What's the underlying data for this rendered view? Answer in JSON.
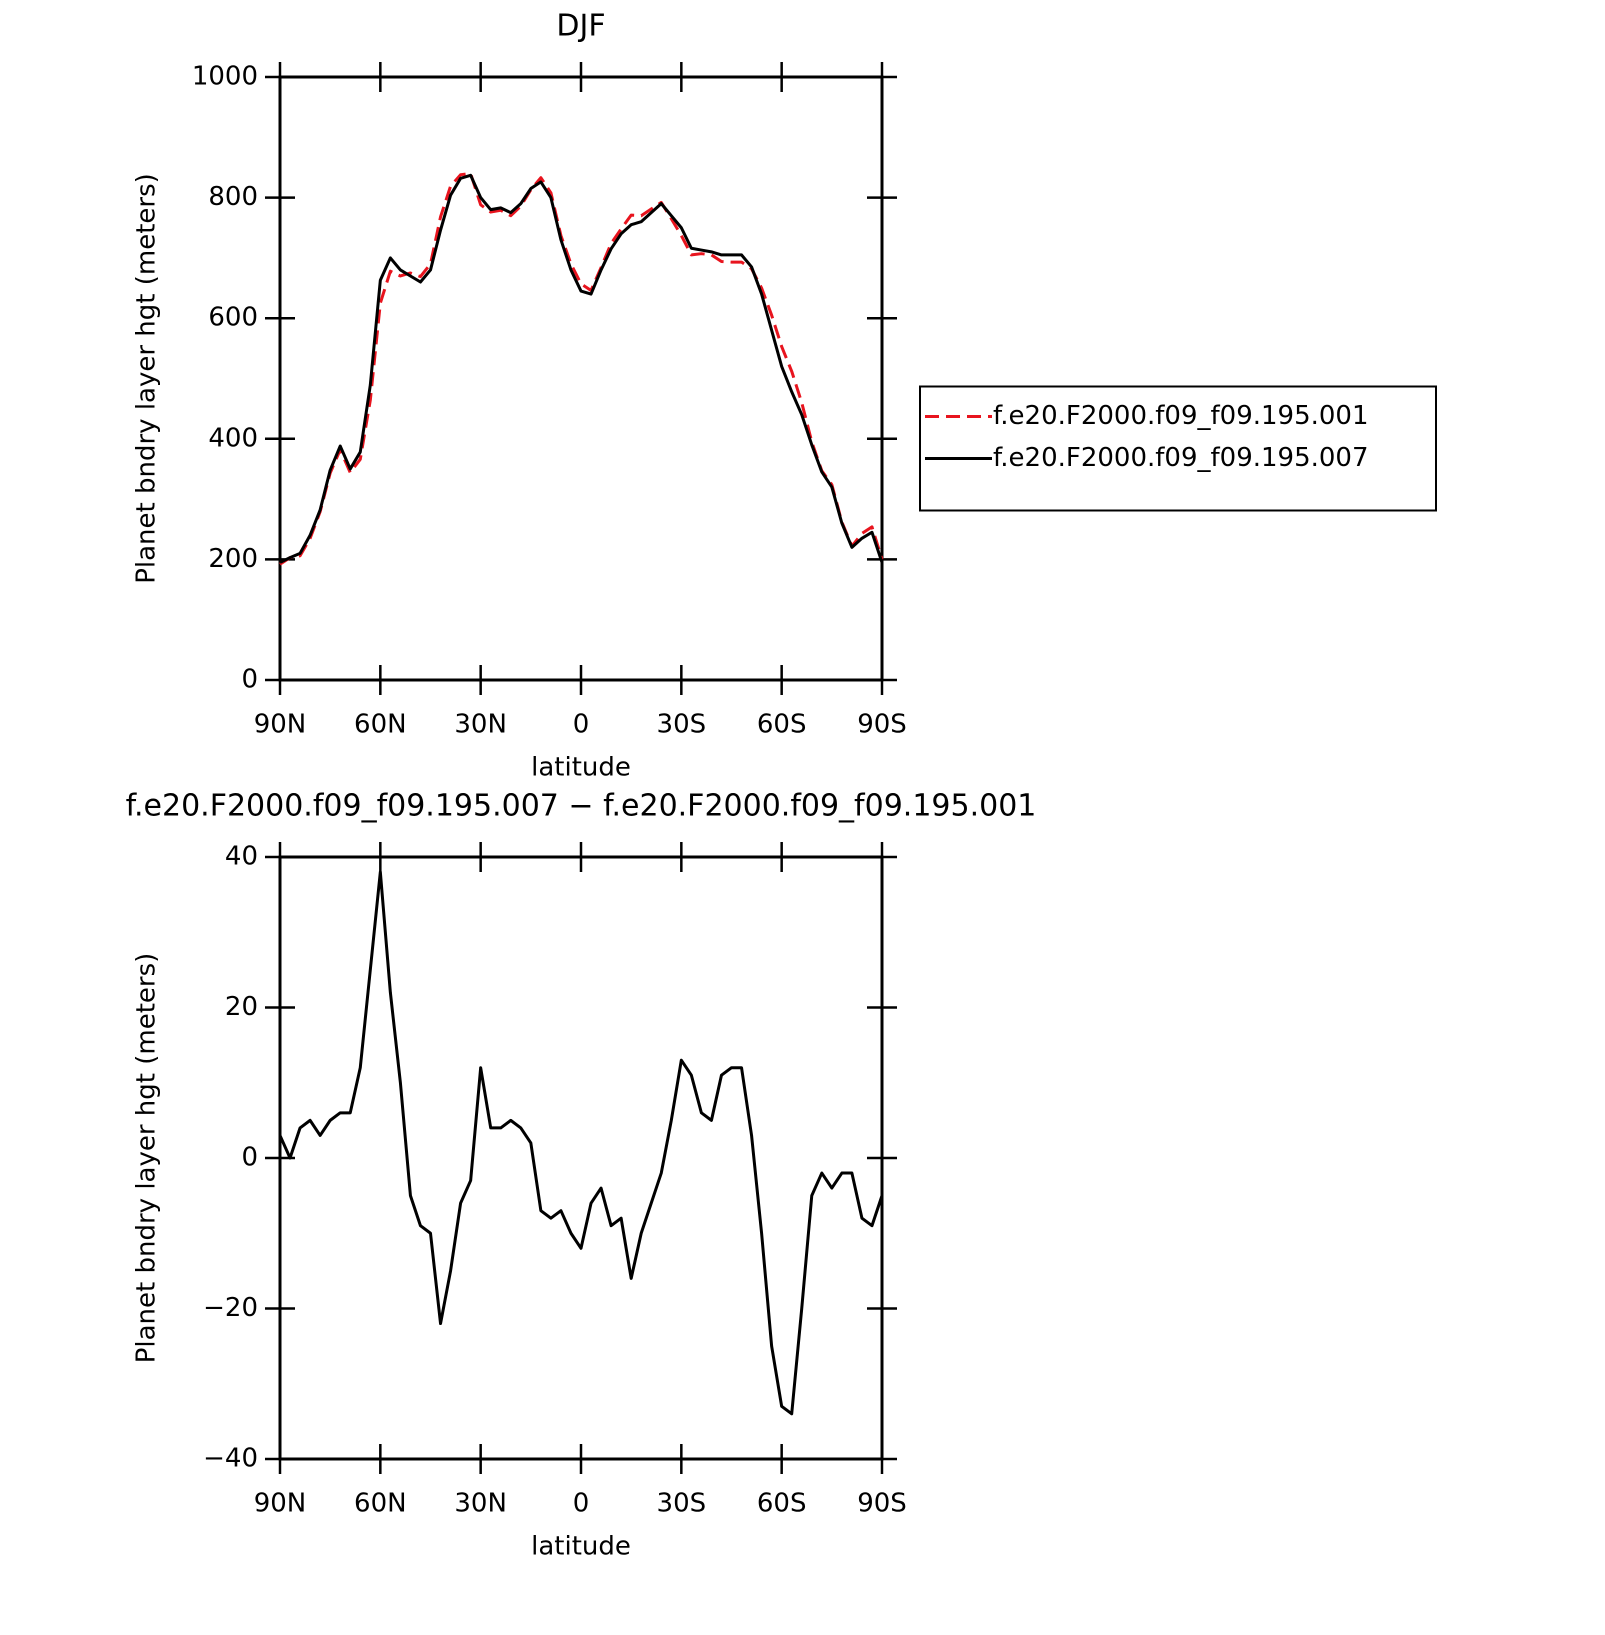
{
  "chart_data": [
    {
      "type": "line",
      "title": "DJF",
      "xlabel": "latitude",
      "ylabel": "Planet bndry layer hgt (meters)",
      "x": [
        90,
        87,
        84,
        81,
        78,
        75,
        72,
        69,
        66,
        63,
        60,
        57,
        54,
        51,
        48,
        45,
        42,
        39,
        36,
        33,
        30,
        27,
        24,
        21,
        18,
        15,
        12,
        9,
        6,
        3,
        0,
        -3,
        -6,
        -9,
        -12,
        -15,
        -18,
        -21,
        -24,
        -27,
        -30,
        -33,
        -36,
        -39,
        -42,
        -45,
        -48,
        -51,
        -54,
        -57,
        -60,
        -63,
        -66,
        -69,
        -72,
        -75,
        -78,
        -81,
        -84,
        -87,
        -90
      ],
      "xlim": [
        90,
        -90
      ],
      "xticks": [
        {
          "value": 90,
          "label": "90N"
        },
        {
          "value": 60,
          "label": "60N"
        },
        {
          "value": 30,
          "label": "30N"
        },
        0,
        {
          "value": -30,
          "label": "30S"
        },
        {
          "value": -60,
          "label": "60S"
        },
        {
          "value": -90,
          "label": "90S"
        }
      ],
      "ylim": [
        0,
        1000
      ],
      "yticks": [
        0,
        200,
        400,
        600,
        800,
        1000
      ],
      "legend": "right",
      "series": [
        {
          "name": "f.e20.F2000.f09_f09.195.001",
          "color": "#e8141e",
          "dash": true,
          "values": [
            192,
            203,
            206,
            235,
            279,
            343,
            382,
            344,
            366,
            464,
            625,
            678,
            670,
            675,
            669,
            690,
            768,
            819,
            838,
            840,
            788,
            776,
            779,
            770,
            786,
            813,
            833,
            808,
            737,
            690,
            657,
            646,
            684,
            724,
            748,
            771,
            770,
            781,
            792,
            765,
            737,
            705,
            707,
            705,
            694,
            693,
            693,
            682,
            650,
            605,
            553,
            512,
            460,
            395,
            347,
            324,
            262,
            222,
            243,
            254,
            200
          ]
        },
        {
          "name": "f.e20.F2000.f09_f09.195.007",
          "color": "#000000",
          "dash": false,
          "values": [
            195,
            203,
            210,
            240,
            282,
            348,
            388,
            350,
            378,
            489,
            663,
            700,
            680,
            670,
            660,
            680,
            746,
            804,
            832,
            837,
            800,
            780,
            783,
            775,
            790,
            815,
            826,
            800,
            730,
            680,
            645,
            640,
            680,
            715,
            740,
            755,
            760,
            775,
            790,
            770,
            750,
            716,
            713,
            710,
            705,
            705,
            705,
            685,
            640,
            580,
            520,
            478,
            440,
            390,
            345,
            320,
            260,
            220,
            235,
            245,
            195
          ]
        }
      ]
    },
    {
      "type": "line",
      "title": "f.e20.F2000.f09_f09.195.007 − f.e20.F2000.f09_f09.195.001",
      "xlabel": "latitude",
      "ylabel": "Planet bndry layer hgt (meters)",
      "x": [
        90,
        87,
        84,
        81,
        78,
        75,
        72,
        69,
        66,
        63,
        60,
        57,
        54,
        51,
        48,
        45,
        42,
        39,
        36,
        33,
        30,
        27,
        24,
        21,
        18,
        15,
        12,
        9,
        6,
        3,
        0,
        -3,
        -6,
        -9,
        -12,
        -15,
        -18,
        -21,
        -24,
        -27,
        -30,
        -33,
        -36,
        -39,
        -42,
        -45,
        -48,
        -51,
        -54,
        -57,
        -60,
        -63,
        -66,
        -69,
        -72,
        -75,
        -78,
        -81,
        -84,
        -87,
        -90
      ],
      "xlim": [
        90,
        -90
      ],
      "xticks": [
        {
          "value": 90,
          "label": "90N"
        },
        {
          "value": 60,
          "label": "60N"
        },
        {
          "value": 30,
          "label": "30N"
        },
        0,
        {
          "value": -30,
          "label": "30S"
        },
        {
          "value": -60,
          "label": "60S"
        },
        {
          "value": -90,
          "label": "90S"
        }
      ],
      "ylim": [
        -40,
        40
      ],
      "yticks": [
        {
          "value": -40,
          "label": "−40"
        },
        {
          "value": -20,
          "label": "−20"
        },
        0,
        20,
        40
      ],
      "series": [
        {
          "color": "#000000",
          "dash": false,
          "values": [
            3,
            0,
            4,
            5,
            3,
            5,
            6,
            6,
            12,
            25,
            38,
            22,
            10,
            -5,
            -9,
            -10,
            -22,
            -15,
            -6,
            -3,
            12,
            4,
            4,
            5,
            4,
            2,
            -7,
            -8,
            -7,
            -10,
            -12,
            -6,
            -4,
            -9,
            -8,
            -16,
            -10,
            -6,
            -2,
            5,
            13,
            11,
            6,
            5,
            11,
            12,
            12,
            3,
            -10,
            -25,
            -33,
            -34,
            -20,
            -5,
            -2,
            -4,
            -2,
            -2,
            -8,
            -9,
            -5
          ]
        }
      ]
    }
  ]
}
